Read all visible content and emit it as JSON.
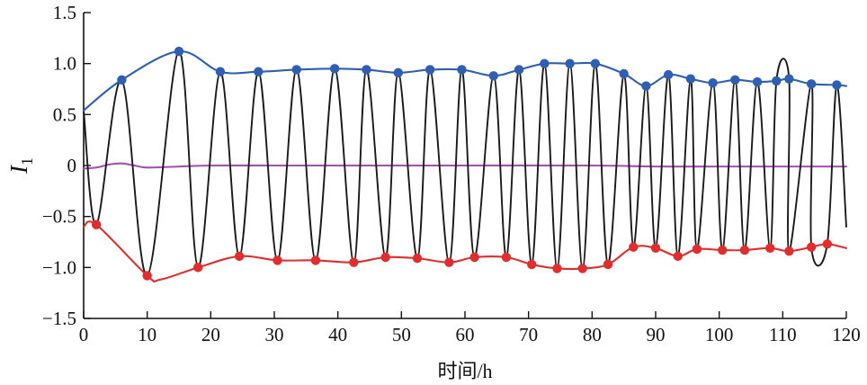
{
  "chart_data": {
    "type": "line",
    "title": "",
    "xlabel": "时间/h",
    "ylabel_main": "I",
    "ylabel_sub": "1",
    "xlim": [
      0,
      120
    ],
    "ylim": [
      -1.5,
      1.5
    ],
    "x_ticks": [
      0,
      10,
      20,
      30,
      40,
      50,
      60,
      70,
      80,
      90,
      100,
      110,
      120
    ],
    "x_tick_labels": [
      "0",
      "10",
      "20",
      "30",
      "40",
      "50",
      "60",
      "70",
      "80",
      "90",
      "100",
      "110",
      "120"
    ],
    "y_ticks": [
      1.5,
      1.0,
      0.5,
      0,
      -0.5,
      -1.0,
      -1.5
    ],
    "y_tick_labels": [
      "1.5",
      "1.0",
      "0.5",
      "0",
      "−0.5",
      "−1.0",
      "−1.5"
    ],
    "grid": false,
    "colors": {
      "signal": "#1a1a1a",
      "upper_envelope": "#2f5fb3",
      "lower_envelope": "#e02d2d",
      "mean": "#a64db3"
    },
    "series": [
      {
        "key": "upper_envelope",
        "color": "#2f5fb3",
        "markers": true,
        "x": [
          0,
          6,
          15,
          21.5,
          27.5,
          33.5,
          39.5,
          44.5,
          49.5,
          54.5,
          59.5,
          64.5,
          68.5,
          72.5,
          76.5,
          80.5,
          85,
          88.5,
          92,
          95.5,
          99,
          102.5,
          106,
          109,
          111,
          114.5,
          118.5,
          120
        ],
        "y": [
          0.54,
          0.84,
          1.12,
          0.92,
          0.92,
          0.94,
          0.95,
          0.94,
          0.91,
          0.94,
          0.94,
          0.88,
          0.94,
          1.0,
          1.0,
          1.0,
          0.9,
          0.78,
          0.89,
          0.85,
          0.81,
          0.84,
          0.82,
          0.83,
          0.85,
          0.8,
          0.79,
          0.78
        ],
        "marker_x": [
          6,
          15,
          21.5,
          27.5,
          33.5,
          39.5,
          44.5,
          49.5,
          54.5,
          59.5,
          64.5,
          68.5,
          72.5,
          76.5,
          80.5,
          85,
          88.5,
          92,
          95.5,
          99,
          102.5,
          106,
          109,
          111,
          114.5,
          118.5
        ],
        "marker_y": [
          0.84,
          1.12,
          0.92,
          0.92,
          0.94,
          0.95,
          0.94,
          0.91,
          0.94,
          0.94,
          0.88,
          0.94,
          1.0,
          1.0,
          1.0,
          0.9,
          0.78,
          0.89,
          0.85,
          0.81,
          0.84,
          0.82,
          0.83,
          0.85,
          0.8,
          0.79
        ]
      },
      {
        "key": "lower_envelope",
        "color": "#e02d2d",
        "markers": true,
        "x": [
          0,
          2,
          10,
          12,
          18,
          24.5,
          30.5,
          36.5,
          42.5,
          47.5,
          52.5,
          57.5,
          61.5,
          66.5,
          70.5,
          74.5,
          78.5,
          82.5,
          86.5,
          90,
          93.5,
          96.5,
          100.5,
          104,
          108,
          111,
          114.5,
          117,
          120
        ],
        "y": [
          -0.6,
          -0.58,
          -1.08,
          -1.12,
          -1.0,
          -0.89,
          -0.93,
          -0.93,
          -0.95,
          -0.9,
          -0.91,
          -0.95,
          -0.9,
          -0.9,
          -0.97,
          -1.01,
          -1.01,
          -0.97,
          -0.8,
          -0.81,
          -0.89,
          -0.82,
          -0.83,
          -0.83,
          -0.81,
          -0.84,
          -0.8,
          -0.77,
          -0.81
        ],
        "marker_x": [
          2,
          10,
          18,
          24.5,
          30.5,
          36.5,
          42.5,
          47.5,
          52.5,
          57.5,
          61.5,
          66.5,
          70.5,
          74.5,
          78.5,
          82.5,
          86.5,
          90,
          93.5,
          96.5,
          100.5,
          104,
          108,
          111,
          114.5,
          117
        ],
        "marker_y": [
          -0.58,
          -1.08,
          -1.0,
          -0.89,
          -0.93,
          -0.93,
          -0.95,
          -0.9,
          -0.91,
          -0.95,
          -0.9,
          -0.9,
          -0.97,
          -1.01,
          -1.01,
          -0.97,
          -0.8,
          -0.81,
          -0.89,
          -0.82,
          -0.83,
          -0.83,
          -0.81,
          -0.84,
          -0.8,
          -0.77
        ]
      },
      {
        "key": "mean",
        "color": "#a64db3",
        "markers": false,
        "x": [
          0,
          2,
          4,
          6,
          8,
          10,
          15,
          20,
          30,
          40,
          60,
          80,
          90,
          100,
          110,
          120
        ],
        "y": [
          -0.03,
          -0.02,
          0.01,
          0.02,
          0.0,
          -0.02,
          -0.01,
          0.0,
          0.0,
          0.0,
          0.0,
          0.0,
          -0.01,
          -0.01,
          -0.01,
          -0.01
        ]
      },
      {
        "key": "signal",
        "color": "#1a1a1a",
        "markers": false,
        "x": [
          0,
          2,
          6,
          10,
          15,
          18,
          21.5,
          24.5,
          27.5,
          30.5,
          33.5,
          36.5,
          39.5,
          42.5,
          44.5,
          47.5,
          49.5,
          52.5,
          54.5,
          57.5,
          59.5,
          61.5,
          64.5,
          66.5,
          68.5,
          70.5,
          72.5,
          74.5,
          76.5,
          78.5,
          80.5,
          82.5,
          85,
          86.5,
          88.5,
          90,
          92,
          93.5,
          95.5,
          96.5,
          99,
          100.5,
          102.5,
          104,
          106,
          108,
          109,
          111,
          111,
          114.5,
          114.5,
          117,
          118.5,
          120
        ],
        "y": [
          0.54,
          -0.58,
          0.84,
          -1.08,
          1.12,
          -1.0,
          0.92,
          -0.89,
          0.92,
          -0.93,
          0.94,
          -0.93,
          0.95,
          -0.95,
          0.94,
          -0.9,
          0.91,
          -0.91,
          0.94,
          -0.95,
          0.94,
          -0.9,
          0.88,
          -0.9,
          0.94,
          -0.97,
          1.0,
          -1.01,
          1.0,
          -1.01,
          1.0,
          -0.97,
          0.9,
          -0.8,
          0.78,
          -0.81,
          0.89,
          -0.89,
          0.85,
          -0.82,
          0.81,
          -0.83,
          0.84,
          -0.83,
          0.82,
          -0.81,
          0.83,
          0.85,
          -0.84,
          0.8,
          -0.8,
          -0.77,
          0.79,
          -0.6
        ]
      }
    ]
  }
}
